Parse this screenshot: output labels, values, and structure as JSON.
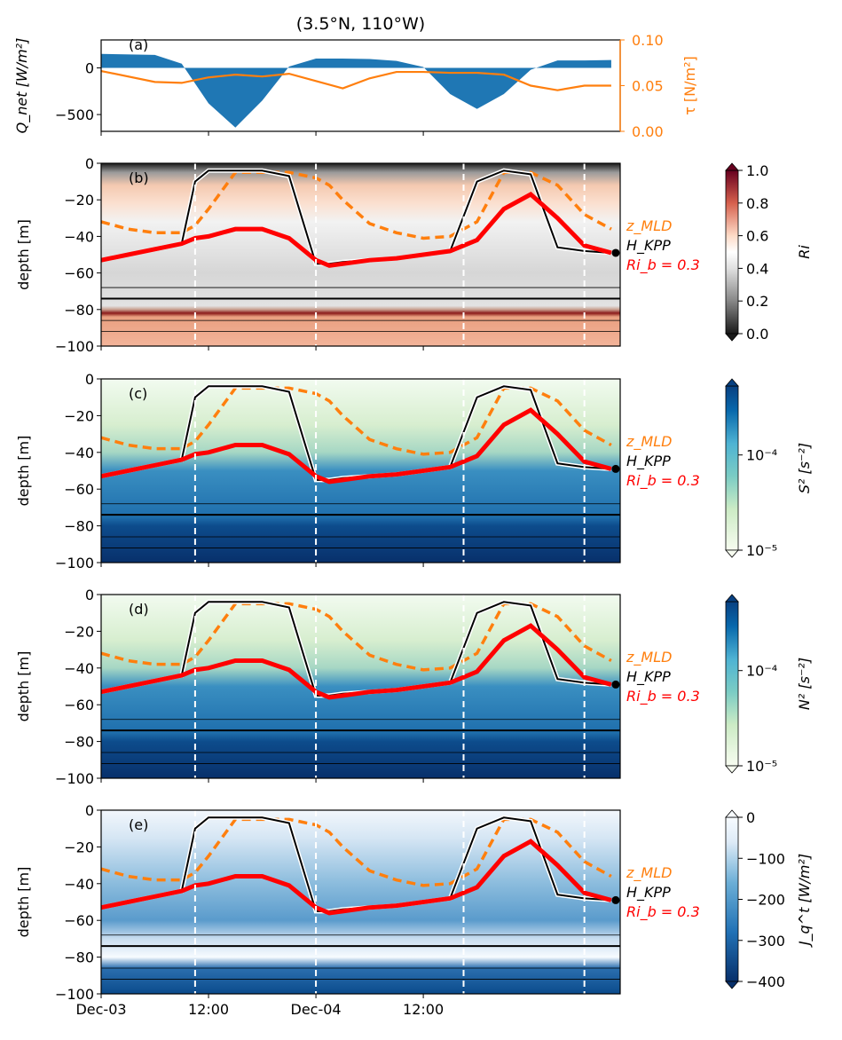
{
  "title": "(3.5°N, 110°W)",
  "x_axis": {
    "tick_labels": [
      "Dec-03",
      "12:00",
      "Dec-04",
      "12:00"
    ]
  },
  "chart_data": [
    {
      "panel": "(a)",
      "type": "area",
      "ylabel": "Q_net [W/m²]",
      "ylim": [
        -680,
        300
      ],
      "yticks": [
        "0",
        "−500"
      ],
      "x_hours": [
        0,
        6,
        9,
        12,
        15,
        18,
        21,
        24,
        27,
        30,
        33,
        36,
        39,
        42,
        45,
        48,
        51,
        54,
        57
      ],
      "series": [
        {
          "name": "Q_net",
          "color": "#1f77b4",
          "values": [
            150,
            140,
            45,
            -380,
            -640,
            -350,
            15,
            100,
            100,
            95,
            75,
            10,
            -280,
            -440,
            -280,
            -20,
            80,
            80,
            85
          ]
        }
      ],
      "twin_axis": {
        "ylabel": "τ [N/m²]",
        "color": "#ff7f0e",
        "ylim": [
          0,
          0.1
        ],
        "yticks": [
          "0.00",
          "0.05",
          "0.10"
        ],
        "x_hours": [
          0,
          6,
          9,
          12,
          15,
          18,
          21,
          24,
          27,
          30,
          33,
          36,
          39,
          42,
          45,
          48,
          51,
          54,
          57
        ],
        "values": [
          0.066,
          0.054,
          0.053,
          0.059,
          0.062,
          0.06,
          0.063,
          0.055,
          0.047,
          0.058,
          0.065,
          0.065,
          0.064,
          0.064,
          0.062,
          0.05,
          0.045,
          0.05,
          0.05
        ]
      }
    },
    {
      "panel": "(b)",
      "type": "heatmap",
      "ylabel": "depth [m]",
      "ylim": [
        -100,
        0
      ],
      "yticks": [
        "0",
        "−20",
        "−40",
        "−60",
        "−80",
        "−100"
      ],
      "colorbar": {
        "label": "Ri",
        "colormap": "RdGy_r",
        "ticks": [
          "0.0",
          "0.2",
          "0.4",
          "0.6",
          "0.8",
          "1.0"
        ],
        "range": [
          0,
          1
        ]
      },
      "fill": "ri"
    },
    {
      "panel": "(c)",
      "type": "heatmap",
      "ylabel": "depth [m]",
      "ylim": [
        -100,
        0
      ],
      "yticks": [
        "0",
        "−20",
        "−40",
        "−60",
        "−80",
        "−100"
      ],
      "colorbar": {
        "label": "S² [s⁻²]",
        "colormap": "GnBu",
        "ticks": [
          "10⁻⁴",
          "10⁻⁵"
        ],
        "scale": "log"
      },
      "fill": "blue"
    },
    {
      "panel": "(d)",
      "type": "heatmap",
      "ylabel": "depth [m]",
      "ylim": [
        -100,
        0
      ],
      "yticks": [
        "0",
        "−20",
        "−40",
        "−60",
        "−80",
        "−100"
      ],
      "colorbar": {
        "label": "N² [s⁻²]",
        "colormap": "GnBu",
        "ticks": [
          "10⁻⁴",
          "10⁻⁵"
        ],
        "scale": "log"
      },
      "fill": "blue"
    },
    {
      "panel": "(e)",
      "type": "heatmap",
      "ylabel": "depth [m]",
      "ylim": [
        -100,
        0
      ],
      "yticks": [
        "0",
        "−20",
        "−40",
        "−60",
        "−80",
        "−100"
      ],
      "colorbar": {
        "label": "J_q^t [W/m²]",
        "colormap": "Blues_r",
        "ticks": [
          "0",
          "−100",
          "−200",
          "−300",
          "−400"
        ],
        "range": [
          -400,
          0
        ]
      },
      "fill": "flux"
    }
  ],
  "depth_lines": {
    "x_hours": [
      0,
      3,
      6,
      9,
      10.5,
      12,
      15,
      18,
      21,
      24,
      25.5,
      27,
      30,
      33,
      36,
      39,
      42,
      45,
      48,
      51,
      54,
      57
    ],
    "series": [
      {
        "name": "z_MLD",
        "label_color": "#ff7f0e",
        "style": "dashed",
        "values": [
          -32,
          -36,
          -38,
          -38,
          -34,
          -25,
          -5,
          -5,
          -5,
          -8,
          -12,
          -20,
          -33,
          -38,
          -41,
          -40,
          -32,
          -5,
          -5,
          -12,
          -28,
          -36
        ]
      },
      {
        "name": "H_KPP",
        "label_color": "#000000",
        "style": "solid",
        "values": [
          -53,
          -50,
          -47,
          -44,
          -10,
          -4,
          -4,
          -4,
          -7,
          -55,
          -55,
          -54,
          -53,
          -52,
          -50,
          -48,
          -10,
          -4,
          -6,
          -46,
          -48,
          -49
        ]
      },
      {
        "name": "Ri_b = 0.3",
        "label_color": "#ff0000",
        "style": "thick",
        "values": [
          -53,
          -50,
          -47,
          -44,
          -41,
          -40,
          -36,
          -36,
          -41,
          -53,
          -56,
          -55,
          -53,
          -52,
          -50,
          -48,
          -42,
          -25,
          -17,
          -30,
          -45,
          -49
        ]
      }
    ],
    "labels": [
      "z_MLD",
      "H_KPP",
      "Ri_b = 0.3"
    ]
  },
  "day_night_markers_hours": [
    10.5,
    24,
    40.5,
    54
  ]
}
